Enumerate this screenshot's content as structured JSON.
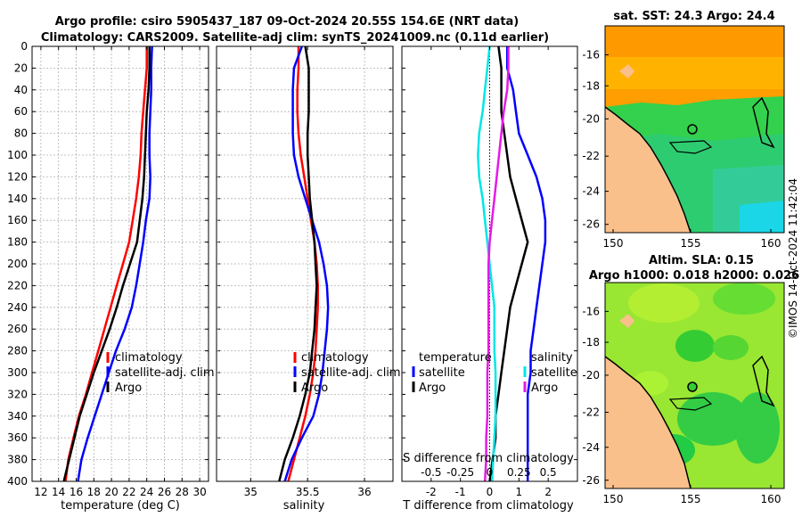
{
  "titles": {
    "line1": "Argo profile: csiro 5905437_187 09-Oct-2024 20.55S 154.6E (NRT data)",
    "line2": "Climatology: CARS2009. Satellite-adj clim: synTS_20241009.nc (0.11d earlier)"
  },
  "colors": {
    "climatology": "#ff0000",
    "satellite": "#0000ff",
    "argo": "#000000",
    "sal_diff": "#00e6e6",
    "sal_sat_diff": "#e619e6"
  },
  "chart_data": [
    {
      "type": "line",
      "title": "",
      "xlabel": "temperature (deg C)",
      "ylabel": "",
      "xlim": [
        11,
        31
      ],
      "ylim": [
        400,
        0
      ],
      "xticks": [
        12,
        14,
        16,
        18,
        20,
        22,
        24,
        26,
        28,
        30
      ],
      "yticks": [
        0,
        20,
        40,
        60,
        80,
        100,
        120,
        140,
        160,
        180,
        200,
        220,
        240,
        260,
        280,
        300,
        320,
        340,
        360,
        380,
        400
      ],
      "grid": true,
      "legend": [
        "climatology",
        "satellite-adj. clim",
        "Argo"
      ],
      "series": [
        {
          "name": "climatology",
          "color": "#ff0000",
          "points": [
            [
              24.0,
              0
            ],
            [
              24.0,
              20
            ],
            [
              23.8,
              40
            ],
            [
              23.6,
              60
            ],
            [
              23.4,
              80
            ],
            [
              23.3,
              100
            ],
            [
              23.1,
              120
            ],
            [
              22.8,
              140
            ],
            [
              22.4,
              160
            ],
            [
              22.0,
              180
            ],
            [
              21.3,
              200
            ],
            [
              20.6,
              220
            ],
            [
              19.9,
              240
            ],
            [
              19.2,
              260
            ],
            [
              18.5,
              280
            ],
            [
              17.8,
              300
            ],
            [
              17.1,
              320
            ],
            [
              16.3,
              340
            ],
            [
              15.7,
              360
            ],
            [
              15.1,
              380
            ],
            [
              14.8,
              400
            ]
          ]
        },
        {
          "name": "satellite-adj. clim",
          "color": "#0000ff",
          "points": [
            [
              24.6,
              0
            ],
            [
              24.5,
              20
            ],
            [
              24.5,
              40
            ],
            [
              24.4,
              60
            ],
            [
              24.3,
              80
            ],
            [
              24.3,
              100
            ],
            [
              24.4,
              120
            ],
            [
              24.3,
              140
            ],
            [
              23.9,
              160
            ],
            [
              23.6,
              180
            ],
            [
              23.2,
              200
            ],
            [
              22.8,
              220
            ],
            [
              22.3,
              240
            ],
            [
              21.5,
              260
            ],
            [
              20.5,
              280
            ],
            [
              19.7,
              300
            ],
            [
              18.9,
              320
            ],
            [
              18.1,
              340
            ],
            [
              17.3,
              360
            ],
            [
              16.6,
              380
            ],
            [
              16.2,
              400
            ]
          ]
        },
        {
          "name": "Argo",
          "color": "#000000",
          "points": [
            [
              24.3,
              0
            ],
            [
              24.3,
              20
            ],
            [
              24.2,
              40
            ],
            [
              24.0,
              60
            ],
            [
              23.9,
              80
            ],
            [
              23.8,
              100
            ],
            [
              23.7,
              120
            ],
            [
              23.5,
              140
            ],
            [
              23.2,
              160
            ],
            [
              22.9,
              180
            ],
            [
              22.1,
              200
            ],
            [
              21.3,
              220
            ],
            [
              20.6,
              240
            ],
            [
              19.8,
              260
            ],
            [
              18.9,
              280
            ],
            [
              18.0,
              300
            ],
            [
              17.2,
              320
            ],
            [
              16.4,
              340
            ],
            [
              15.8,
              360
            ],
            [
              15.2,
              380
            ],
            [
              14.6,
              400
            ]
          ]
        }
      ]
    },
    {
      "type": "line",
      "title": "",
      "xlabel": "salinity",
      "ylabel": "",
      "xlim": [
        34.7,
        36.25
      ],
      "ylim": [
        400,
        0
      ],
      "xticks": [
        35,
        35.5,
        36
      ],
      "xtick_labels": [
        "35",
        "35.5",
        "36"
      ],
      "grid": true,
      "legend": [
        "climatology",
        "satellite-adj. clim",
        "Argo"
      ],
      "series": [
        {
          "name": "climatology",
          "color": "#ff0000",
          "points": [
            [
              35.42,
              0
            ],
            [
              35.42,
              20
            ],
            [
              35.41,
              40
            ],
            [
              35.41,
              60
            ],
            [
              35.42,
              80
            ],
            [
              35.44,
              100
            ],
            [
              35.47,
              120
            ],
            [
              35.5,
              140
            ],
            [
              35.53,
              160
            ],
            [
              35.56,
              180
            ],
            [
              35.58,
              200
            ],
            [
              35.59,
              220
            ],
            [
              35.59,
              240
            ],
            [
              35.58,
              260
            ],
            [
              35.57,
              280
            ],
            [
              35.55,
              300
            ],
            [
              35.52,
              320
            ],
            [
              35.48,
              340
            ],
            [
              35.43,
              360
            ],
            [
              35.38,
              380
            ],
            [
              35.33,
              400
            ]
          ]
        },
        {
          "name": "satellite-adj. clim",
          "color": "#0000ff",
          "points": [
            [
              35.45,
              0
            ],
            [
              35.38,
              20
            ],
            [
              35.37,
              40
            ],
            [
              35.37,
              60
            ],
            [
              35.37,
              80
            ],
            [
              35.38,
              100
            ],
            [
              35.42,
              120
            ],
            [
              35.48,
              140
            ],
            [
              35.54,
              160
            ],
            [
              35.6,
              180
            ],
            [
              35.64,
              200
            ],
            [
              35.67,
              220
            ],
            [
              35.68,
              240
            ],
            [
              35.67,
              260
            ],
            [
              35.65,
              280
            ],
            [
              35.63,
              300
            ],
            [
              35.6,
              320
            ],
            [
              35.55,
              340
            ],
            [
              35.45,
              360
            ],
            [
              35.36,
              380
            ],
            [
              35.3,
              400
            ]
          ]
        },
        {
          "name": "Argo",
          "color": "#000000",
          "points": [
            [
              35.48,
              0
            ],
            [
              35.51,
              20
            ],
            [
              35.51,
              40
            ],
            [
              35.51,
              60
            ],
            [
              35.5,
              80
            ],
            [
              35.5,
              100
            ],
            [
              35.51,
              120
            ],
            [
              35.52,
              140
            ],
            [
              35.54,
              160
            ],
            [
              35.56,
              180
            ],
            [
              35.57,
              200
            ],
            [
              35.58,
              220
            ],
            [
              35.57,
              240
            ],
            [
              35.56,
              260
            ],
            [
              35.54,
              280
            ],
            [
              35.52,
              300
            ],
            [
              35.48,
              320
            ],
            [
              35.43,
              340
            ],
            [
              35.37,
              360
            ],
            [
              35.3,
              380
            ],
            [
              35.25,
              400
            ]
          ]
        }
      ]
    },
    {
      "type": "line",
      "title": "",
      "xlabel": "T difference from climatology",
      "ylabel": "",
      "xlim": [
        -3,
        3
      ],
      "ylim": [
        400,
        0
      ],
      "xticks": [
        -2,
        -1,
        0,
        1,
        2
      ],
      "xtick_labels": [
        "-2",
        "-1",
        "0",
        "1",
        "2"
      ],
      "top_axis_label": "S difference from climatology",
      "top_ticks": [
        -0.5,
        -0.25,
        0,
        0.25,
        0.5
      ],
      "top_tick_labels": [
        "-0.5",
        "-0.25",
        "0",
        "0.25",
        "0.5"
      ],
      "grid": false,
      "legend_left_title": "temperature",
      "legend_right_title": "salinity",
      "legend": [
        "satellite",
        "Argo",
        "satellite",
        "Argo"
      ],
      "series": [
        {
          "name": "T satellite",
          "color": "#0000ff",
          "points": [
            [
              0.6,
              0
            ],
            [
              0.6,
              20
            ],
            [
              0.8,
              40
            ],
            [
              0.9,
              60
            ],
            [
              1.0,
              80
            ],
            [
              1.3,
              100
            ],
            [
              1.6,
              120
            ],
            [
              1.8,
              140
            ],
            [
              1.9,
              160
            ],
            [
              1.9,
              180
            ],
            [
              1.8,
              200
            ],
            [
              1.7,
              220
            ],
            [
              1.6,
              240
            ],
            [
              1.5,
              260
            ],
            [
              1.4,
              280
            ],
            [
              1.4,
              300
            ],
            [
              1.3,
              320
            ],
            [
              1.3,
              340
            ],
            [
              1.3,
              360
            ],
            [
              1.3,
              380
            ],
            [
              1.3,
              400
            ]
          ]
        },
        {
          "name": "T Argo",
          "color": "#000000",
          "points": [
            [
              0.3,
              0
            ],
            [
              0.4,
              20
            ],
            [
              0.4,
              40
            ],
            [
              0.4,
              60
            ],
            [
              0.5,
              80
            ],
            [
              0.6,
              100
            ],
            [
              0.7,
              120
            ],
            [
              0.9,
              140
            ],
            [
              1.1,
              160
            ],
            [
              1.3,
              180
            ],
            [
              1.1,
              200
            ],
            [
              0.9,
              220
            ],
            [
              0.7,
              240
            ],
            [
              0.6,
              260
            ],
            [
              0.5,
              280
            ],
            [
              0.4,
              300
            ],
            [
              0.3,
              320
            ],
            [
              0.2,
              340
            ],
            [
              0.2,
              360
            ],
            [
              0.1,
              380
            ],
            [
              0.0,
              400
            ]
          ]
        },
        {
          "name": "S satellite",
          "color": "#00e6e6",
          "points": [
            [
              0.0,
              0
            ],
            [
              -0.02,
              20
            ],
            [
              -0.04,
              40
            ],
            [
              -0.06,
              60
            ],
            [
              -0.09,
              80
            ],
            [
              -0.1,
              100
            ],
            [
              -0.09,
              120
            ],
            [
              -0.06,
              140
            ],
            [
              -0.04,
              160
            ],
            [
              -0.02,
              180
            ],
            [
              0.0,
              200
            ],
            [
              0.02,
              220
            ],
            [
              0.04,
              240
            ],
            [
              0.04,
              260
            ],
            [
              0.04,
              280
            ],
            [
              0.05,
              300
            ],
            [
              0.05,
              320
            ],
            [
              0.05,
              340
            ],
            [
              0.04,
              360
            ],
            [
              0.03,
              380
            ],
            [
              0.02,
              400
            ]
          ]
        },
        {
          "name": "S Argo",
          "color": "#e619e6",
          "points": [
            [
              0.16,
              0
            ],
            [
              0.16,
              20
            ],
            [
              0.15,
              40
            ],
            [
              0.12,
              60
            ],
            [
              0.1,
              80
            ],
            [
              0.08,
              100
            ],
            [
              0.06,
              120
            ],
            [
              0.04,
              140
            ],
            [
              0.02,
              160
            ],
            [
              0.0,
              180
            ],
            [
              -0.01,
              200
            ],
            [
              -0.01,
              220
            ],
            [
              -0.01,
              240
            ],
            [
              -0.01,
              260
            ],
            [
              -0.01,
              280
            ],
            [
              -0.02,
              300
            ],
            [
              -0.02,
              320
            ],
            [
              -0.02,
              340
            ],
            [
              -0.03,
              360
            ],
            [
              -0.03,
              380
            ],
            [
              -0.04,
              400
            ]
          ]
        }
      ]
    }
  ],
  "maps": {
    "sst": {
      "title": "sat. SST: 24.3 Argo: 24.4",
      "lat_ticks": [
        "-16",
        "-18",
        "-20",
        "-22",
        "-24",
        "-26"
      ],
      "lon_ticks": [
        "150",
        "155",
        "160"
      ]
    },
    "sla": {
      "title1": "Altim. SLA: 0.15",
      "title2": "Argo h1000: 0.018 h2000: 0.026",
      "lat_ticks": [
        "-16",
        "-18",
        "-20",
        "-22",
        "-24",
        "-26"
      ],
      "lon_ticks": [
        "150",
        "155",
        "160"
      ]
    }
  },
  "credit": "©IMOS 14-Oct-2024 11:42:04"
}
